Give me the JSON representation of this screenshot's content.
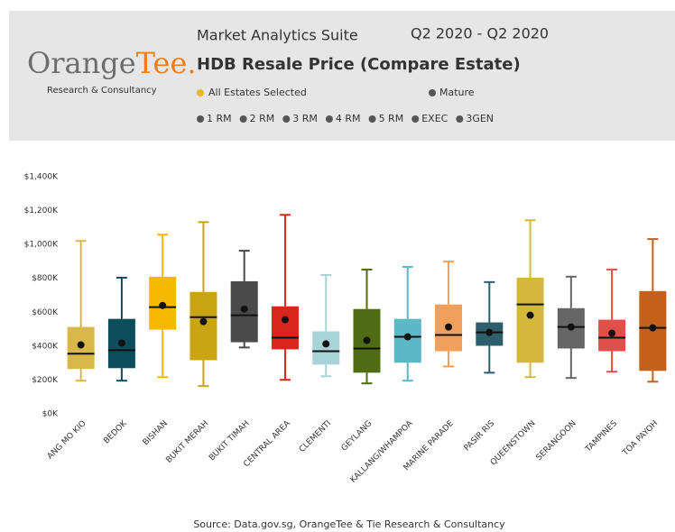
{
  "header": {
    "logo": {
      "part1": "Orange",
      "part2": "Tee."
    },
    "tagline": "Research & Consultancy",
    "suite": "Market Analytics Suite",
    "period": "Q2 2020 - Q2 2020",
    "title": "HDB Resale Price (Compare Estate)",
    "selection": "All Estates Selected",
    "maturity": "Mature",
    "filters": [
      "1 RM",
      "2 RM",
      "3 RM",
      "4 RM",
      "5 RM",
      "EXEC",
      "3GEN"
    ]
  },
  "chart_data": {
    "type": "box",
    "categories": [
      "ANG MO KIO",
      "BEDOK",
      "BISHAN",
      "BUKIT MERAH",
      "BUKIT TIMAH",
      "CENTRAL AREA",
      "CLEMENTI",
      "GEYLANG",
      "KALLANG/WHAMPOA",
      "MARINE PARADE",
      "PASIR RIS",
      "QUEENSTOWN",
      "SERANGOON",
      "TAMPINES",
      "TOA PAYOH"
    ],
    "boxes": [
      {
        "whisker_low": 196,
        "q1": 265,
        "median": 355,
        "q3": 513,
        "whisker_high": 1021,
        "mean": 407,
        "color": "#d9b84a"
      },
      {
        "whisker_low": 196,
        "q1": 270,
        "median": 376,
        "q3": 561,
        "whisker_high": 804,
        "mean": 418,
        "color": "#0e4d5c"
      },
      {
        "whisker_low": 217,
        "q1": 497,
        "median": 630,
        "q3": 810,
        "whisker_high": 1058,
        "mean": 640,
        "color": "#f7b900"
      },
      {
        "whisker_low": 164,
        "q1": 317,
        "median": 571,
        "q3": 720,
        "whisker_high": 1132,
        "mean": 545,
        "color": "#c9a516"
      },
      {
        "whisker_low": 392,
        "q1": 423,
        "median": 582,
        "q3": 783,
        "whisker_high": 963,
        "mean": 619,
        "color": "#4a4a4a"
      },
      {
        "whisker_low": 201,
        "q1": 381,
        "median": 450,
        "q3": 635,
        "whisker_high": 1175,
        "mean": 556,
        "color": "#d9261c"
      },
      {
        "whisker_low": 222,
        "q1": 291,
        "median": 370,
        "q3": 487,
        "whisker_high": 820,
        "mean": 413,
        "color": "#a8d4d8"
      },
      {
        "whisker_low": 180,
        "q1": 243,
        "median": 386,
        "q3": 619,
        "whisker_high": 852,
        "mean": 434,
        "color": "#4f6b14"
      },
      {
        "whisker_low": 196,
        "q1": 302,
        "median": 455,
        "q3": 561,
        "whisker_high": 868,
        "mean": 455,
        "color": "#5cb8c4"
      },
      {
        "whisker_low": 280,
        "q1": 370,
        "median": 466,
        "q3": 646,
        "whisker_high": 899,
        "mean": 513,
        "color": "#f0a05a"
      },
      {
        "whisker_low": 243,
        "q1": 402,
        "median": 481,
        "q3": 540,
        "whisker_high": 778,
        "mean": 481,
        "color": "#2e5e6b"
      },
      {
        "whisker_low": 217,
        "q1": 302,
        "median": 646,
        "q3": 804,
        "whisker_high": 1143,
        "mean": 582,
        "color": "#d4b83a"
      },
      {
        "whisker_low": 212,
        "q1": 386,
        "median": 513,
        "q3": 624,
        "whisker_high": 810,
        "mean": 513,
        "color": "#666666"
      },
      {
        "whisker_low": 249,
        "q1": 370,
        "median": 450,
        "q3": 556,
        "whisker_high": 852,
        "mean": 476,
        "color": "#e0504a"
      },
      {
        "whisker_low": 190,
        "q1": 254,
        "median": 508,
        "q3": 725,
        "whisker_high": 1032,
        "mean": 508,
        "color": "#c4601a"
      }
    ],
    "ylim": [
      0,
      1400
    ],
    "yticks": [
      {
        "value": 0,
        "label": "$0K"
      },
      {
        "value": 200,
        "label": "$200K"
      },
      {
        "value": 400,
        "label": "$400K"
      },
      {
        "value": 600,
        "label": "$600K"
      },
      {
        "value": 800,
        "label": "$800K"
      },
      {
        "value": 1000,
        "label": "$1,000K"
      },
      {
        "value": 1200,
        "label": "$1,200K"
      },
      {
        "value": 1400,
        "label": "$1,400K"
      }
    ],
    "source": "Source: Data.gov.sg, OrangeTee & Tie Research & Consultancy"
  }
}
